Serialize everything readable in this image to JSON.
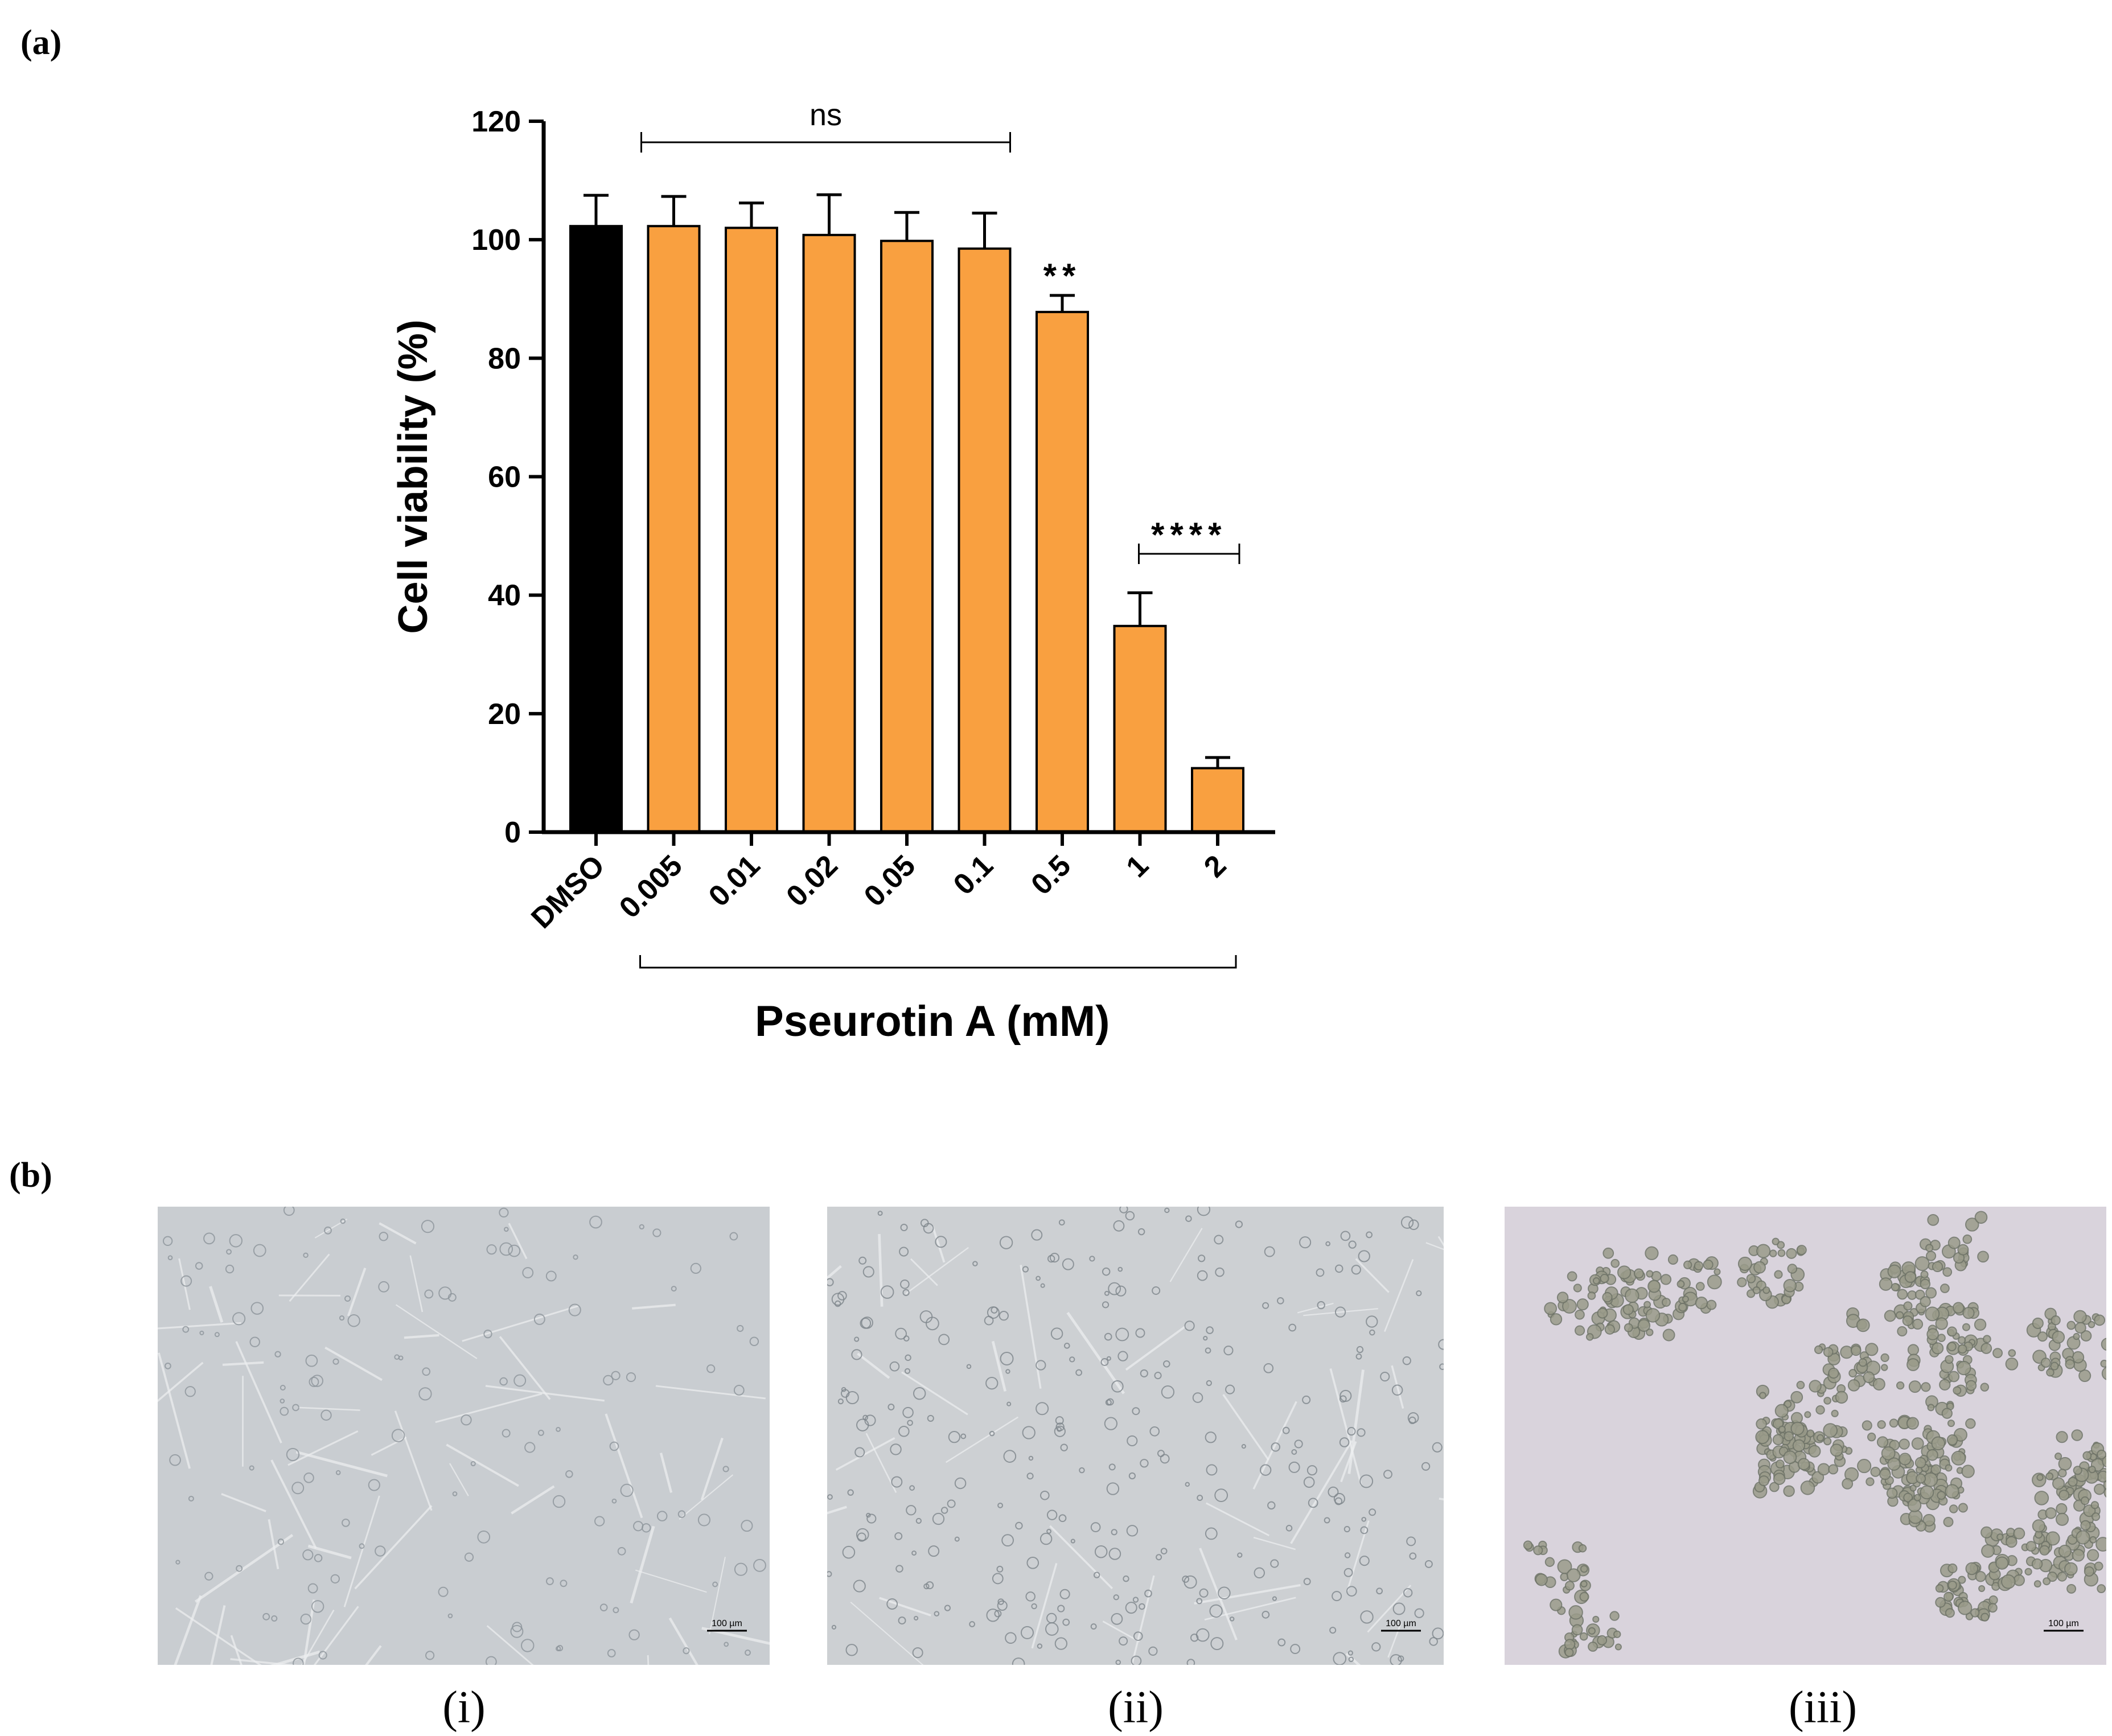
{
  "panels": {
    "a_label": "(a)",
    "b_label": "(b)"
  },
  "chart_data": {
    "type": "bar",
    "categories": [
      "DMSO",
      "0.005",
      "0.01",
      "0.02",
      "0.05",
      "0.1",
      "0.5",
      "1",
      "2"
    ],
    "values": [
      102.3,
      102.3,
      102.0,
      100.8,
      99.8,
      98.5,
      87.8,
      34.8,
      10.8
    ],
    "errors": [
      5.2,
      5.0,
      4.2,
      6.8,
      4.8,
      6.0,
      2.8,
      5.6,
      1.8
    ],
    "colors": [
      "#000000",
      "#f9a040",
      "#f9a040",
      "#f9a040",
      "#f9a040",
      "#f9a040",
      "#f9a040",
      "#f9a040",
      "#f9a040"
    ],
    "ylabel": "Cell viability (%)",
    "xlabel": "Pseurotin A (mM)",
    "ylim": [
      0,
      120
    ],
    "yticks": [
      0,
      20,
      40,
      60,
      80,
      100,
      120
    ],
    "significance": [
      {
        "label": "ns",
        "from": 1,
        "to": 5
      },
      {
        "label": "**",
        "from": 6,
        "to": 6
      },
      {
        "label": "****",
        "from": 7,
        "to": 8
      }
    ]
  },
  "micrographs": [
    {
      "caption": "(i)",
      "scalebar": "100 µm",
      "tint": "#c9cdd1"
    },
    {
      "caption": "(ii)",
      "scalebar": "100 µm",
      "tint": "#cdd0d3"
    },
    {
      "caption": "(iii)",
      "scalebar": "100 µm",
      "tint": "#d9d3dc"
    }
  ]
}
